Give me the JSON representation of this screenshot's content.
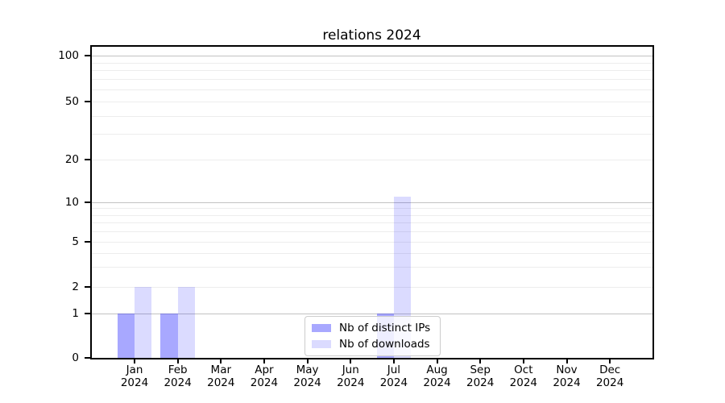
{
  "chart_data": {
    "type": "bar",
    "title": "relations 2024",
    "months": [
      "Jan",
      "Feb",
      "Mar",
      "Apr",
      "May",
      "Jun",
      "Jul",
      "Aug",
      "Sep",
      "Oct",
      "Nov",
      "Dec"
    ],
    "year": "2024",
    "series": [
      {
        "name": "Nb of distinct IPs",
        "color_hex": "#a9a9f6",
        "fill": "rgba(0,0,255,0.34)",
        "values": [
          1,
          1,
          0,
          0,
          0,
          0,
          1,
          0,
          0,
          0,
          0,
          0
        ]
      },
      {
        "name": "Nb of downloads",
        "color_hex": "#dcdcfa",
        "fill": "rgba(0,0,255,0.14)",
        "values": [
          2,
          2,
          0,
          0,
          0,
          0,
          11,
          0,
          0,
          0,
          0,
          0
        ]
      }
    ],
    "x_axis": {
      "tick_label_format": "Month over Year, two lines"
    },
    "y_axis": {
      "scale": "symlog",
      "ticks": [
        0,
        1,
        2,
        5,
        10,
        20,
        50,
        100
      ],
      "major_gridline_values": [
        1,
        10,
        100
      ],
      "minor_gridline_values": [
        2,
        3,
        4,
        5,
        6,
        7,
        8,
        9,
        20,
        30,
        40,
        50,
        60,
        70,
        80,
        90
      ],
      "ylim": [
        0,
        115
      ]
    },
    "legend": {
      "position": "inside lower center"
    },
    "grid": "horizontal",
    "colors": {
      "bar_distinct_ips": "#a9a9f6",
      "bar_downloads": "#dcdcfa",
      "major_grid": "#c2c2c2",
      "minor_grid": "#ededed",
      "axis": "#000000",
      "background": "#ffffff",
      "legend_border": "#cccccc"
    }
  }
}
